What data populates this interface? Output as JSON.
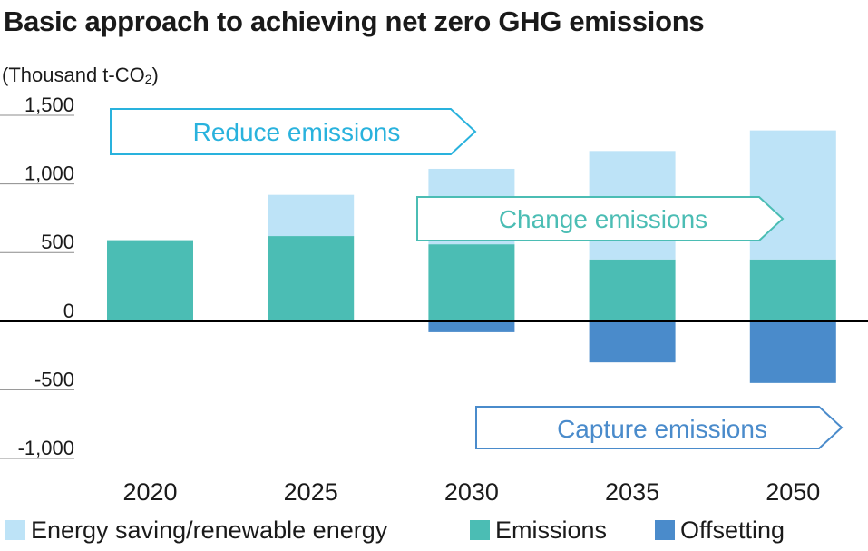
{
  "title": "Basic approach to achieving net zero GHG emissions",
  "unit": {
    "text": "(Thousand t-CO",
    "sub": "2",
    "close": ")"
  },
  "colors": {
    "saving": "#bde3f7",
    "emissions": "#4bbdb4",
    "offsetting": "#4a8bcb",
    "reduce_arrow": "#29b2dd",
    "change_arrow": "#4bbdb4",
    "capture_arrow": "#4a8bcb"
  },
  "arrows": {
    "reduce": "Reduce emissions",
    "change": "Change emissions",
    "capture": "Capture emissions"
  },
  "chart_data": {
    "type": "bar",
    "stacked": true,
    "categories": [
      "2020",
      "2025",
      "2030",
      "2035",
      "2050"
    ],
    "series": [
      {
        "name": "Emissions",
        "values": [
          590,
          620,
          560,
          450,
          450
        ]
      },
      {
        "name": "Energy saving/renewable energy",
        "values": [
          0,
          300,
          550,
          790,
          940
        ]
      },
      {
        "name": "Offsetting",
        "values": [
          0,
          0,
          -80,
          -300,
          -450
        ]
      }
    ],
    "yticks": [
      1500,
      1000,
      500,
      0,
      -500,
      -1000
    ],
    "ytick_labels": [
      "1,500",
      "1,000",
      "500",
      "0",
      "-500",
      "-1,000"
    ],
    "ylim": [
      -1000,
      1500
    ],
    "legend_position": "bottom"
  }
}
